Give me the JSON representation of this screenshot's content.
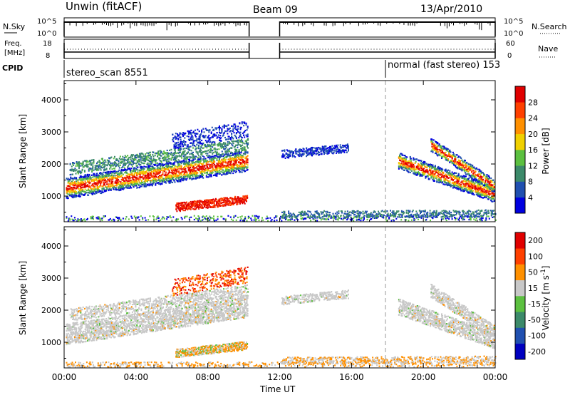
{
  "header": {
    "station": "Unwin (fitACF)",
    "beam": "Beam 09",
    "date": "13/Apr/2010"
  },
  "status_panels": {
    "nsky_label": "N.Sky",
    "nsky_ticks": [
      "10^5",
      "10^0"
    ],
    "nsearch_label": "N.Search",
    "nsearch_ticks": [
      "10^5",
      "10^0"
    ],
    "freq_label_line1": "Freq.",
    "freq_label_line2": "[MHz]",
    "freq_ticks": [
      "18",
      "8"
    ],
    "nave_label": "Nave",
    "nave_ticks": [
      "60",
      "0"
    ],
    "cpid_label": "CPID",
    "cpid_mode1": "stereo_scan 8551",
    "cpid_mode2": "normal (fast stereo) 153"
  },
  "chart_data": [
    {
      "type": "heatmap",
      "name": "power-panel",
      "ylabel": "Slant Range [km]",
      "y_ticks": [
        "1000",
        "2000",
        "3000",
        "4000"
      ],
      "ylim": [
        200,
        4600
      ],
      "xlim": [
        0,
        24
      ],
      "colorbar_label": "Power [dB]",
      "colorbar_ticks": [
        "4",
        "8",
        "12",
        "16",
        "20",
        "24",
        "28"
      ],
      "colorbar_range": [
        0,
        32
      ],
      "colors": [
        "#0000e0",
        "#2050b0",
        "#3c8a6a",
        "#5cc040",
        "#f0d000",
        "#ff9000",
        "#ff4000",
        "#e00000"
      ],
      "data_gap": [
        10.3,
        12.0
      ]
    },
    {
      "type": "heatmap",
      "name": "velocity-panel",
      "ylabel": "Slant Range [km]",
      "y_ticks": [
        "1000",
        "2000",
        "3000",
        "4000"
      ],
      "ylim": [
        200,
        4600
      ],
      "xlim": [
        0,
        24
      ],
      "colorbar_label": "Velocity [m s",
      "colorbar_label_sup": "-1",
      "colorbar_label_end": "]",
      "colorbar_ticks": [
        "200",
        "100",
        "50",
        "15",
        "-15",
        "-50",
        "-100",
        "-200"
      ],
      "colors": [
        "#0000c0",
        "#2050b0",
        "#3c8a6a",
        "#5cc040",
        "#c8c8c8",
        "#ff9000",
        "#ff4000",
        "#e00000"
      ],
      "data_gap": [
        10.3,
        12.0
      ]
    }
  ],
  "x_axis": {
    "label": "Time UT",
    "ticks": [
      "00:00",
      "04:00",
      "08:00",
      "12:00",
      "16:00",
      "20:00",
      "00:00"
    ]
  }
}
